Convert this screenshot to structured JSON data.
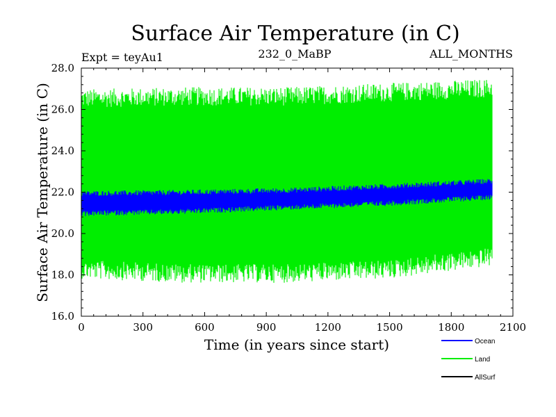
{
  "chart_data": {
    "type": "line",
    "title": "Surface Air Temperature (in C)",
    "subtitle_left": "Expt = teyAu1",
    "subtitle_center": "232_0_MaBP",
    "subtitle_right": "ALL_MONTHS",
    "xlabel": "Time (in years since start)",
    "ylabel": "Surface Air Temperature (in C)",
    "xlim": [
      0,
      2100
    ],
    "ylim": [
      16.0,
      28.0
    ],
    "x_ticks": [
      0,
      300,
      600,
      900,
      1200,
      1500,
      1800,
      2100
    ],
    "x_tick_labels": [
      "0",
      "300",
      "600",
      "900",
      "1200",
      "1500",
      "1800",
      "2100"
    ],
    "y_ticks": [
      16,
      18,
      20,
      22,
      24,
      26,
      28
    ],
    "y_tick_labels": [
      "16.0",
      "18.0",
      "20.0",
      "22.0",
      "24.0",
      "26.0",
      "28.0"
    ],
    "x_data_range": [
      0,
      2000
    ],
    "series": [
      {
        "name": "Land",
        "color": "#00ee00",
        "style": "monthly values oscillating between a lower and upper envelope",
        "upper_envelope": {
          "x": [
            0,
            500,
            1000,
            1500,
            2000
          ],
          "values": [
            26.4,
            26.5,
            26.5,
            26.7,
            26.9
          ]
        },
        "lower_envelope": {
          "x": [
            0,
            500,
            1000,
            1500,
            2000
          ],
          "values": [
            18.4,
            18.2,
            18.2,
            18.4,
            19.0
          ]
        }
      },
      {
        "name": "Ocean",
        "color": "#0000ff",
        "style": "monthly values oscillating between a lower and upper envelope",
        "upper_envelope": {
          "x": [
            0,
            500,
            1000,
            1500,
            2000
          ],
          "values": [
            21.9,
            21.95,
            22.05,
            22.25,
            22.5
          ]
        },
        "lower_envelope": {
          "x": [
            0,
            500,
            1000,
            1500,
            2000
          ],
          "values": [
            21.0,
            21.1,
            21.3,
            21.5,
            21.8
          ]
        }
      },
      {
        "name": "AllSurf",
        "color": "#000000",
        "style": "not visible (no data drawn)",
        "upper_envelope": null,
        "lower_envelope": null
      }
    ],
    "legend": {
      "position": "bottom-right, below plot",
      "entries": [
        {
          "label": "Ocean",
          "color": "#0000ff"
        },
        {
          "label": "Land",
          "color": "#00ee00"
        },
        {
          "label": "AllSurf",
          "color": "#000000"
        }
      ]
    }
  }
}
